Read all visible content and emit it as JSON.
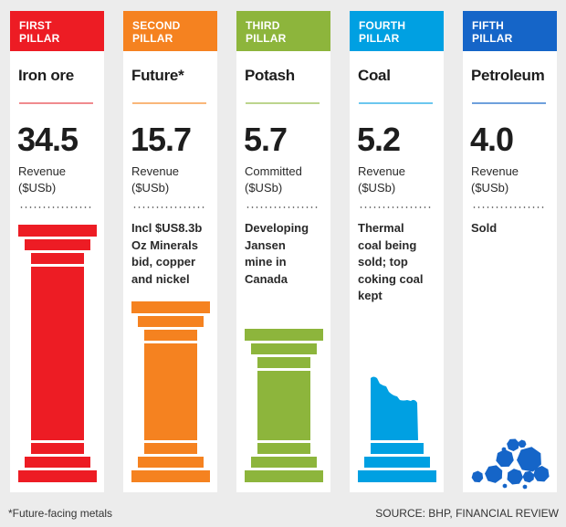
{
  "pillars": [
    {
      "header_line1": "FIRST",
      "header_line2": "PILLAR",
      "name": "Iron ore",
      "value": "34.5",
      "metric_line1": "Revenue",
      "metric_line2": "($USb)",
      "note_lines": [],
      "color": "#ed1c24",
      "rule_color": "#f08b8e",
      "graphic": "full-column"
    },
    {
      "header_line1": "SECOND",
      "header_line2": "PILLAR",
      "name": "Future*",
      "value": "15.7",
      "metric_line1": "Revenue",
      "metric_line2": "($USb)",
      "note_lines": [
        "Incl $US8.3b",
        "Oz Minerals",
        "bid, copper",
        "and nickel"
      ],
      "color": "#f58220",
      "rule_color": "#f9b77a",
      "graphic": "medium-column"
    },
    {
      "header_line1": "THIRD",
      "header_line2": "PILLAR",
      "name": "Potash",
      "value": "5.7",
      "metric_line1": "Committed",
      "metric_line2": "($USb)",
      "note_lines": [
        "Developing",
        "Jansen",
        "mine in",
        "Canada"
      ],
      "color": "#8db53c",
      "rule_color": "#bcd58d",
      "graphic": "short-column"
    },
    {
      "header_line1": "FOURTH",
      "header_line2": "PILLAR",
      "name": "Coal",
      "value": "5.2",
      "metric_line1": "Revenue",
      "metric_line2": "($USb)",
      "note_lines": [
        "Thermal",
        "coal being",
        "sold; top",
        "coking coal",
        "kept"
      ],
      "color": "#00a0e2",
      "rule_color": "#6cc7ef",
      "graphic": "broken-column"
    },
    {
      "header_line1": "FIFTH",
      "header_line2": "PILLAR",
      "name": "Petroleum",
      "value": "4.0",
      "metric_line1": "Revenue",
      "metric_line2": "($USb)",
      "note_lines": [
        "Sold"
      ],
      "color": "#1565c8",
      "rule_color": "#6ea0dc",
      "graphic": "rubble"
    }
  ],
  "footer": {
    "footnote": "*Future-facing metals",
    "source": "SOURCE: BHP, FINANCIAL REVIEW"
  }
}
